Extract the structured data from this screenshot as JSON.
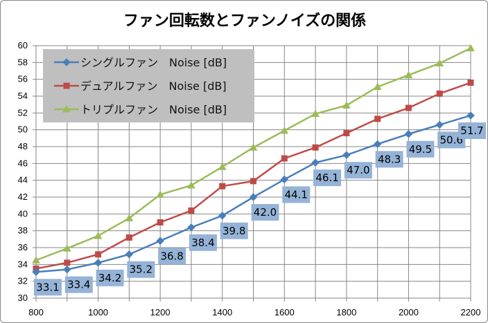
{
  "chart_data": {
    "type": "line",
    "title": "ファン回転数とファンノイズの関係",
    "xlabel": "",
    "ylabel": "",
    "x": [
      800,
      900,
      1000,
      1100,
      1200,
      1300,
      1400,
      1500,
      1600,
      1700,
      1800,
      1900,
      2000,
      2100,
      2200
    ],
    "xlim": [
      800,
      2200
    ],
    "ylim": [
      30,
      60
    ],
    "x_ticks": [
      "800",
      "1000",
      "1200",
      "1400",
      "1600",
      "1800",
      "2000",
      "2200"
    ],
    "y_ticks": [
      "30",
      "32",
      "34",
      "36",
      "38",
      "40",
      "42",
      "44",
      "46",
      "48",
      "50",
      "52",
      "54",
      "56",
      "58",
      "60"
    ],
    "grid": true,
    "legend_position": "top-left",
    "series": [
      {
        "name": "シングルファン　Noise [dB]",
        "color": "#4a7ebb",
        "marker": "diamond",
        "values": [
          33.1,
          33.4,
          34.2,
          35.2,
          36.8,
          38.4,
          39.8,
          42.0,
          44.1,
          46.1,
          47.0,
          48.3,
          49.5,
          50.6,
          51.7
        ],
        "data_labels": [
          "33.1",
          "33.4",
          "34.2",
          "35.2",
          "36.8",
          "38.4",
          "39.8",
          "42.0",
          "44.1",
          "46.1",
          "47.0",
          "48.3",
          "49.5",
          "50.6",
          "51.7"
        ]
      },
      {
        "name": "デュアルファン　Noise [dB]",
        "color": "#be4b48",
        "marker": "square",
        "values": [
          33.5,
          34.2,
          35.2,
          37.2,
          39.0,
          40.4,
          43.3,
          43.9,
          46.6,
          47.9,
          49.6,
          51.3,
          52.6,
          54.3,
          55.6
        ]
      },
      {
        "name": "トリプルファン　Noise [dB]",
        "color": "#9bbb59",
        "marker": "triangle",
        "values": [
          34.5,
          35.9,
          37.4,
          39.5,
          42.3,
          43.4,
          45.6,
          47.9,
          49.9,
          51.9,
          52.9,
          55.1,
          56.5,
          57.9,
          59.7
        ]
      }
    ]
  }
}
